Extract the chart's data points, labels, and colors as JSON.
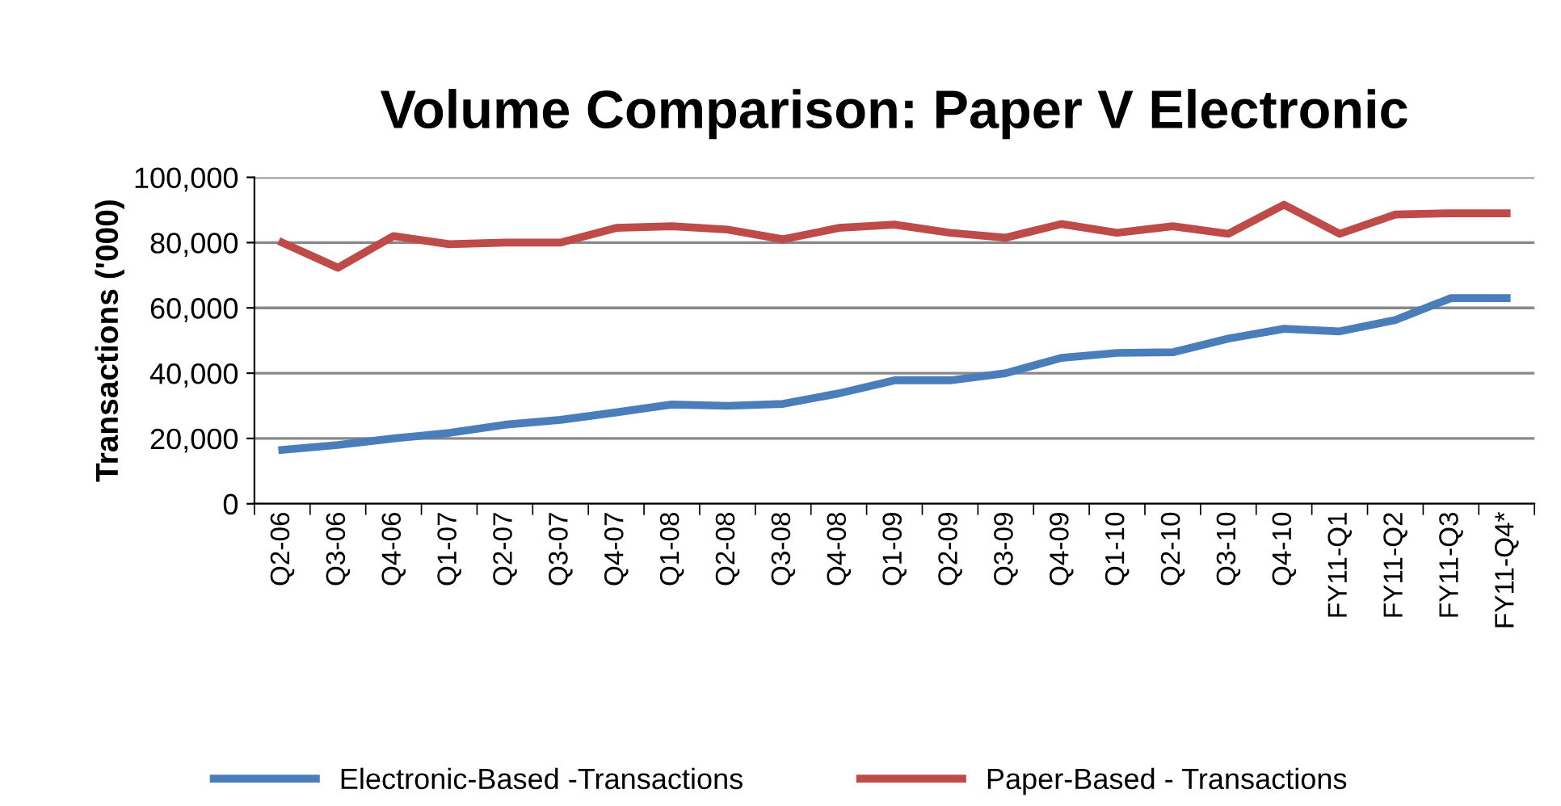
{
  "chart_data": {
    "type": "line",
    "title": "Volume Comparison: Paper V Electronic",
    "ylabel": "Transactions ('000)",
    "categories": [
      "Q2-06",
      "Q3-06",
      "Q4-06",
      "Q1-07",
      "Q2-07",
      "Q3-07",
      "Q4-07",
      "Q1-08",
      "Q2-08",
      "Q3-08",
      "Q4-08",
      "Q1-09",
      "Q2-09",
      "Q3-09",
      "Q4-09",
      "Q1-10",
      "Q2-10",
      "Q3-10",
      "Q4-10",
      "FY11-Q1",
      "FY11-Q2",
      "FY11-Q3",
      "FY11-Q4*"
    ],
    "series": [
      {
        "name": "Electronic-Based -Transactions",
        "color": "#4a7ebb",
        "values": [
          16500,
          18000,
          20000,
          21700,
          24200,
          25700,
          28000,
          30400,
          30000,
          30600,
          33800,
          37800,
          37800,
          40000,
          44700,
          46200,
          46400,
          50600,
          53600,
          52800,
          56300,
          63000,
          63000
        ]
      },
      {
        "name": "Paper-Based - Transactions",
        "color": "#be4b48",
        "values": [
          80000,
          72300,
          82000,
          79500,
          80000,
          80000,
          84500,
          85000,
          84000,
          81000,
          84500,
          85500,
          83000,
          81500,
          85700,
          83000,
          85000,
          82700,
          91600,
          82700,
          88600,
          89000,
          89000
        ]
      }
    ],
    "ylim": [
      0,
      100000
    ],
    "yticks": [
      {
        "value": 0,
        "label": "0"
      },
      {
        "value": 20000,
        "label": "20,000"
      },
      {
        "value": 40000,
        "label": "40,000"
      },
      {
        "value": 60000,
        "label": "60,000"
      },
      {
        "value": 80000,
        "label": "80,000"
      },
      {
        "value": 100000,
        "label": "100,000"
      }
    ],
    "grid": "y",
    "legend": "bottom",
    "marker": "none",
    "line_style": "solid"
  }
}
